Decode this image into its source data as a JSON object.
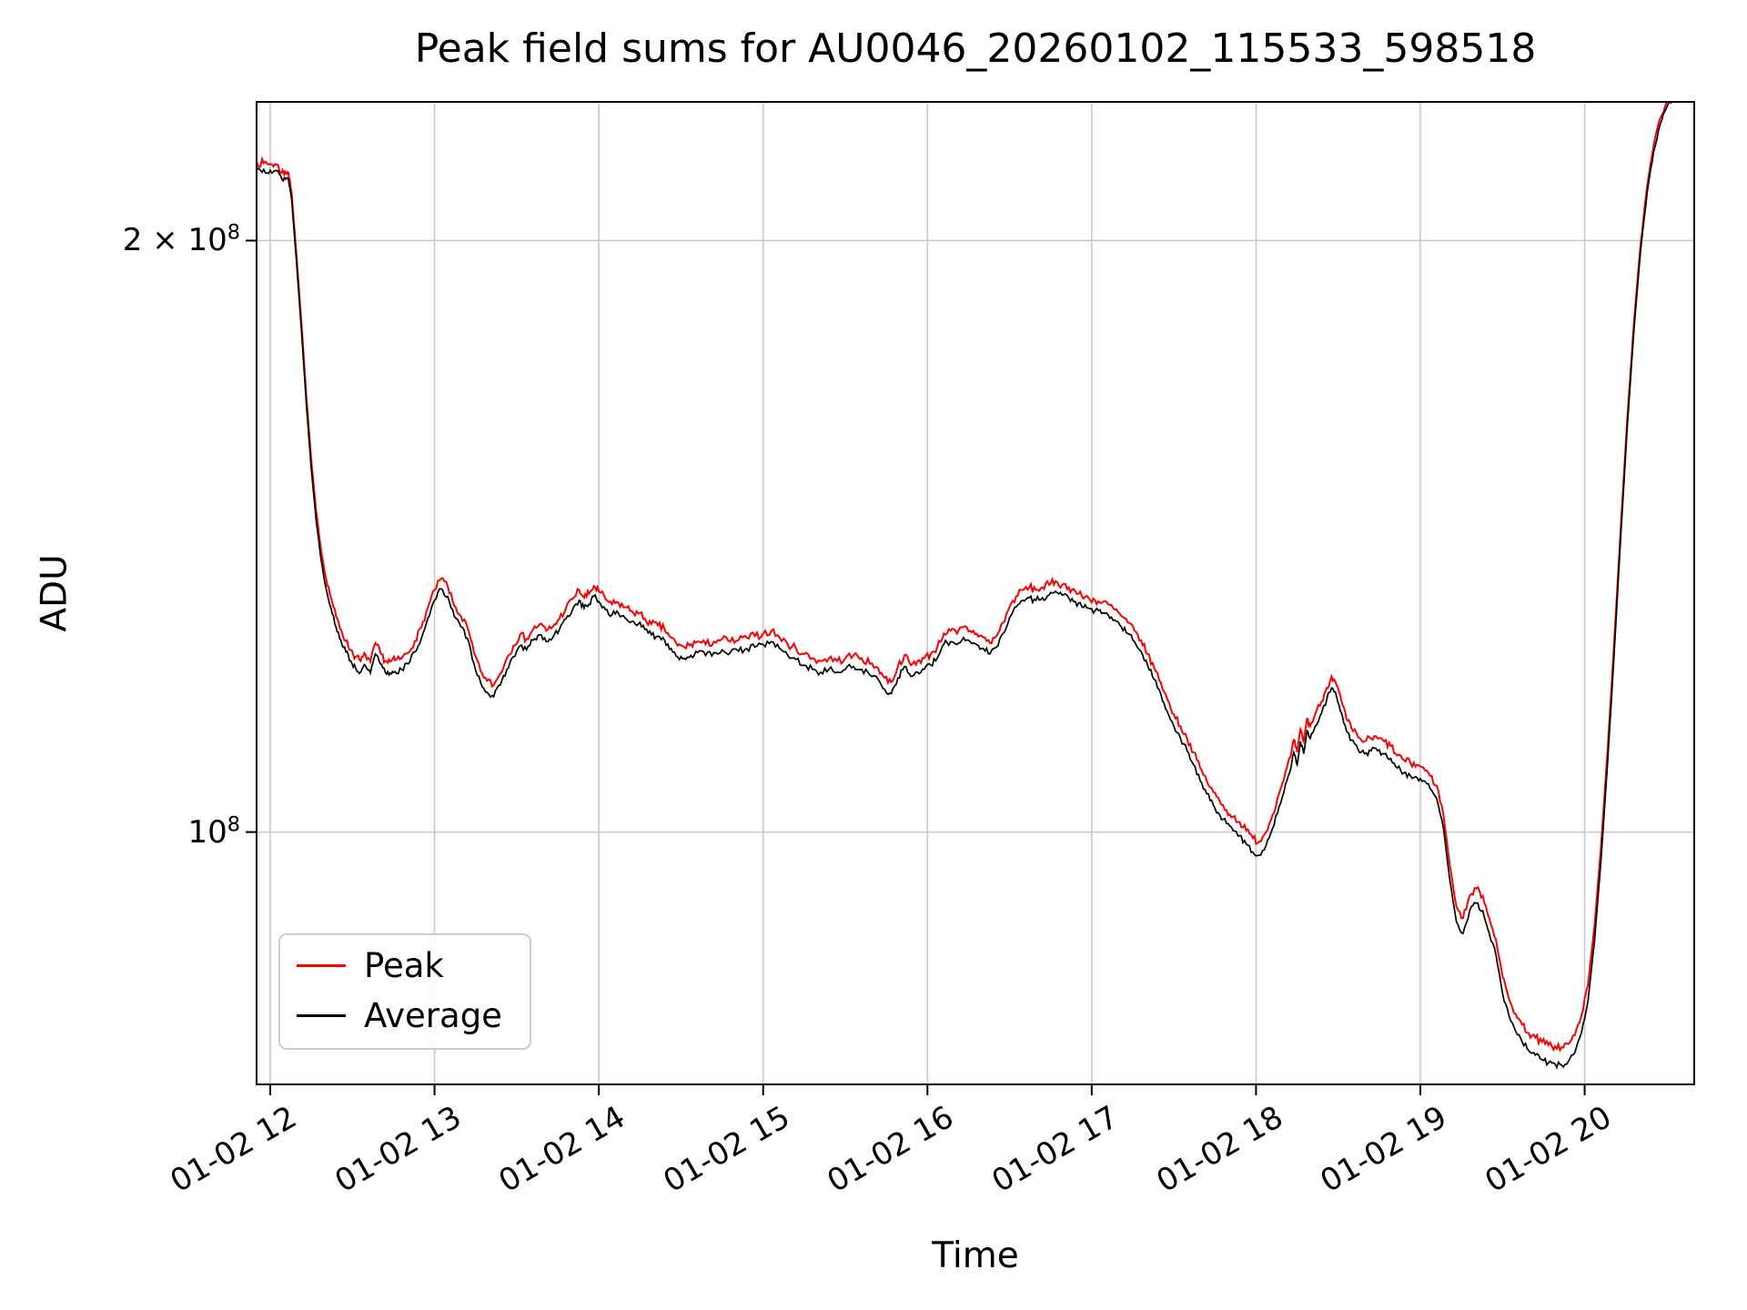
{
  "chart_data": {
    "type": "line",
    "title": "Peak field sums for AU0046_20260102_115533_598518",
    "xlabel": "Time",
    "ylabel": "ADU",
    "y_scale": "log",
    "grid": true,
    "grid_color": "#c9c9c9",
    "ylim": [
      74400000,
      235300000
    ],
    "xlim_hours": [
      11.917,
      20.667
    ],
    "y_unit_scale": 100000000,
    "x_ticks": [
      {
        "hour": 12,
        "label": "01-02 12"
      },
      {
        "hour": 13,
        "label": "01-02 13"
      },
      {
        "hour": 14,
        "label": "01-02 14"
      },
      {
        "hour": 15,
        "label": "01-02 15"
      },
      {
        "hour": 16,
        "label": "01-02 16"
      },
      {
        "hour": 17,
        "label": "01-02 17"
      },
      {
        "hour": 18,
        "label": "01-02 18"
      },
      {
        "hour": 19,
        "label": "01-02 19"
      },
      {
        "hour": 20,
        "label": "01-02 20"
      }
    ],
    "y_ticks": [
      {
        "value": 200000000,
        "base": "2 × 10",
        "exp": "8"
      },
      {
        "value": 100000000,
        "base": "10",
        "exp": "8"
      }
    ],
    "legend": {
      "location": "lower left",
      "entries": [
        {
          "name": "Peak",
          "color": "#ff0000"
        },
        {
          "name": "Average",
          "color": "#000000"
        }
      ]
    },
    "series_order": [
      "Peak",
      "Average"
    ],
    "noise_band_log10": {
      "Peak": 0.0022,
      "Average": 0.0018
    },
    "points_format": [
      "hour",
      "Peak_1e8",
      "Average_1e8"
    ],
    "points": [
      [
        11.92,
        2.191,
        2.175
      ],
      [
        11.96,
        2.19,
        2.174
      ],
      [
        12.0,
        2.188,
        2.172
      ],
      [
        12.04,
        2.186,
        2.17
      ],
      [
        12.07,
        2.166,
        2.15
      ],
      [
        12.09,
        2.168,
        2.152
      ],
      [
        12.11,
        2.166,
        2.15
      ],
      [
        12.13,
        2.116,
        2.1
      ],
      [
        12.16,
        1.966,
        1.95
      ],
      [
        12.19,
        1.816,
        1.8
      ],
      [
        12.22,
        1.666,
        1.65
      ],
      [
        12.25,
        1.546,
        1.53
      ],
      [
        12.28,
        1.456,
        1.44
      ],
      [
        12.31,
        1.391,
        1.375
      ],
      [
        12.34,
        1.346,
        1.33
      ],
      [
        12.37,
        1.316,
        1.3
      ],
      [
        12.4,
        1.288,
        1.272
      ],
      [
        12.43,
        1.268,
        1.252
      ],
      [
        12.46,
        1.251,
        1.235
      ],
      [
        12.49,
        1.238,
        1.222
      ],
      [
        12.52,
        1.228,
        1.212
      ],
      [
        12.55,
        1.222,
        1.206
      ],
      [
        12.58,
        1.231,
        1.215
      ],
      [
        12.61,
        1.221,
        1.205
      ],
      [
        12.64,
        1.248,
        1.232
      ],
      [
        12.67,
        1.234,
        1.218
      ],
      [
        12.7,
        1.222,
        1.206
      ],
      [
        12.73,
        1.221,
        1.205
      ],
      [
        12.76,
        1.223,
        1.207
      ],
      [
        12.8,
        1.226,
        1.21
      ],
      [
        12.84,
        1.234,
        1.218
      ],
      [
        12.88,
        1.251,
        1.235
      ],
      [
        12.92,
        1.271,
        1.255
      ],
      [
        12.96,
        1.301,
        1.285
      ],
      [
        13.0,
        1.328,
        1.312
      ],
      [
        13.04,
        1.346,
        1.33
      ],
      [
        13.08,
        1.334,
        1.318
      ],
      [
        13.12,
        1.304,
        1.288
      ],
      [
        13.16,
        1.288,
        1.272
      ],
      [
        13.2,
        1.271,
        1.255
      ],
      [
        13.24,
        1.234,
        1.218
      ],
      [
        13.28,
        1.208,
        1.192
      ],
      [
        13.32,
        1.194,
        1.178
      ],
      [
        13.36,
        1.188,
        1.172
      ],
      [
        13.4,
        1.204,
        1.188
      ],
      [
        13.44,
        1.226,
        1.21
      ],
      [
        13.48,
        1.244,
        1.228
      ],
      [
        13.52,
        1.26,
        1.244
      ],
      [
        13.56,
        1.254,
        1.238
      ],
      [
        13.6,
        1.268,
        1.252
      ],
      [
        13.64,
        1.276,
        1.26
      ],
      [
        13.68,
        1.266,
        1.25
      ],
      [
        13.72,
        1.272,
        1.256
      ],
      [
        13.76,
        1.284,
        1.268
      ],
      [
        13.8,
        1.3,
        1.284
      ],
      [
        13.84,
        1.314,
        1.298
      ],
      [
        13.88,
        1.328,
        1.312
      ],
      [
        13.91,
        1.316,
        1.3
      ],
      [
        13.94,
        1.322,
        1.306
      ],
      [
        13.97,
        1.334,
        1.318
      ],
      [
        14.0,
        1.326,
        1.31
      ],
      [
        14.04,
        1.314,
        1.298
      ],
      [
        14.08,
        1.306,
        1.29
      ],
      [
        14.12,
        1.308,
        1.292
      ],
      [
        14.16,
        1.301,
        1.285
      ],
      [
        14.2,
        1.296,
        1.28
      ],
      [
        14.24,
        1.292,
        1.276
      ],
      [
        14.28,
        1.284,
        1.268
      ],
      [
        14.32,
        1.276,
        1.26
      ],
      [
        14.36,
        1.274,
        1.258
      ],
      [
        14.4,
        1.268,
        1.252
      ],
      [
        14.44,
        1.256,
        1.24
      ],
      [
        14.48,
        1.244,
        1.228
      ],
      [
        14.52,
        1.242,
        1.226
      ],
      [
        14.56,
        1.246,
        1.23
      ],
      [
        14.6,
        1.25,
        1.234
      ],
      [
        14.65,
        1.246,
        1.23
      ],
      [
        14.7,
        1.25,
        1.234
      ],
      [
        14.75,
        1.254,
        1.238
      ],
      [
        14.8,
        1.25,
        1.234
      ],
      [
        14.85,
        1.252,
        1.236
      ],
      [
        14.9,
        1.256,
        1.24
      ],
      [
        14.95,
        1.258,
        1.242
      ],
      [
        15.0,
        1.262,
        1.246
      ],
      [
        15.05,
        1.266,
        1.25
      ],
      [
        15.1,
        1.256,
        1.24
      ],
      [
        15.15,
        1.246,
        1.23
      ],
      [
        15.2,
        1.24,
        1.224
      ],
      [
        15.25,
        1.232,
        1.216
      ],
      [
        15.3,
        1.226,
        1.21
      ],
      [
        15.35,
        1.222,
        1.206
      ],
      [
        15.4,
        1.226,
        1.21
      ],
      [
        15.45,
        1.222,
        1.206
      ],
      [
        15.5,
        1.226,
        1.21
      ],
      [
        15.55,
        1.23,
        1.214
      ],
      [
        15.6,
        1.226,
        1.21
      ],
      [
        15.65,
        1.218,
        1.202
      ],
      [
        15.7,
        1.212,
        1.196
      ],
      [
        15.74,
        1.198,
        1.182
      ],
      [
        15.78,
        1.192,
        1.176
      ],
      [
        15.82,
        1.214,
        1.198
      ],
      [
        15.86,
        1.23,
        1.214
      ],
      [
        15.9,
        1.216,
        1.2
      ],
      [
        15.94,
        1.222,
        1.206
      ],
      [
        15.98,
        1.226,
        1.21
      ],
      [
        16.02,
        1.232,
        1.216
      ],
      [
        16.06,
        1.242,
        1.226
      ],
      [
        16.1,
        1.262,
        1.246
      ],
      [
        16.14,
        1.266,
        1.25
      ],
      [
        16.18,
        1.262,
        1.246
      ],
      [
        16.22,
        1.272,
        1.256
      ],
      [
        16.26,
        1.266,
        1.25
      ],
      [
        16.3,
        1.262,
        1.246
      ],
      [
        16.34,
        1.256,
        1.24
      ],
      [
        16.38,
        1.248,
        1.232
      ],
      [
        16.42,
        1.258,
        1.242
      ],
      [
        16.46,
        1.278,
        1.262
      ],
      [
        16.5,
        1.302,
        1.286
      ],
      [
        16.54,
        1.318,
        1.302
      ],
      [
        16.58,
        1.328,
        1.312
      ],
      [
        16.62,
        1.332,
        1.316
      ],
      [
        16.66,
        1.328,
        1.312
      ],
      [
        16.7,
        1.332,
        1.316
      ],
      [
        16.74,
        1.336,
        1.32
      ],
      [
        16.78,
        1.342,
        1.326
      ],
      [
        16.82,
        1.336,
        1.32
      ],
      [
        16.86,
        1.332,
        1.316
      ],
      [
        16.9,
        1.326,
        1.31
      ],
      [
        16.94,
        1.318,
        1.302
      ],
      [
        16.98,
        1.316,
        1.3
      ],
      [
        17.02,
        1.312,
        1.296
      ],
      [
        17.06,
        1.308,
        1.292
      ],
      [
        17.1,
        1.306,
        1.29
      ],
      [
        17.14,
        1.298,
        1.282
      ],
      [
        17.18,
        1.288,
        1.272
      ],
      [
        17.22,
        1.278,
        1.262
      ],
      [
        17.26,
        1.266,
        1.25
      ],
      [
        17.3,
        1.252,
        1.236
      ],
      [
        17.34,
        1.232,
        1.216
      ],
      [
        17.38,
        1.212,
        1.196
      ],
      [
        17.42,
        1.192,
        1.176
      ],
      [
        17.46,
        1.168,
        1.152
      ],
      [
        17.5,
        1.148,
        1.132
      ],
      [
        17.54,
        1.132,
        1.116
      ],
      [
        17.58,
        1.116,
        1.1
      ],
      [
        17.62,
        1.098,
        1.082
      ],
      [
        17.66,
        1.078,
        1.062
      ],
      [
        17.7,
        1.062,
        1.046
      ],
      [
        17.74,
        1.048,
        1.032
      ],
      [
        17.78,
        1.036,
        1.02
      ],
      [
        17.82,
        1.026,
        1.01
      ],
      [
        17.86,
        1.018,
        1.002
      ],
      [
        17.9,
        1.012,
        0.996
      ],
      [
        17.94,
        1.002,
        0.986
      ],
      [
        17.98,
        0.993,
        0.977
      ],
      [
        18.02,
        0.989,
        0.973
      ],
      [
        18.06,
        1.0,
        0.984
      ],
      [
        18.1,
        1.02,
        1.004
      ],
      [
        18.14,
        1.046,
        1.03
      ],
      [
        18.18,
        1.074,
        1.058
      ],
      [
        18.21,
        1.092,
        1.076
      ],
      [
        18.23,
        1.114,
        1.098
      ],
      [
        18.25,
        1.098,
        1.082
      ],
      [
        18.27,
        1.128,
        1.112
      ],
      [
        18.29,
        1.112,
        1.096
      ],
      [
        18.31,
        1.142,
        1.126
      ],
      [
        18.33,
        1.132,
        1.116
      ],
      [
        18.36,
        1.148,
        1.132
      ],
      [
        18.4,
        1.166,
        1.15
      ],
      [
        18.43,
        1.184,
        1.168
      ],
      [
        18.46,
        1.2,
        1.184
      ],
      [
        18.49,
        1.188,
        1.172
      ],
      [
        18.52,
        1.166,
        1.15
      ],
      [
        18.55,
        1.142,
        1.126
      ],
      [
        18.58,
        1.13,
        1.114
      ],
      [
        18.62,
        1.118,
        1.102
      ],
      [
        18.66,
        1.112,
        1.096
      ],
      [
        18.7,
        1.116,
        1.1
      ],
      [
        18.74,
        1.116,
        1.1
      ],
      [
        18.78,
        1.112,
        1.096
      ],
      [
        18.82,
        1.106,
        1.09
      ],
      [
        18.86,
        1.094,
        1.078
      ],
      [
        18.9,
        1.088,
        1.072
      ],
      [
        18.94,
        1.084,
        1.068
      ],
      [
        18.98,
        1.082,
        1.066
      ],
      [
        19.02,
        1.078,
        1.062
      ],
      [
        19.06,
        1.068,
        1.052
      ],
      [
        19.1,
        1.056,
        1.04
      ],
      [
        19.14,
        1.021,
        1.005
      ],
      [
        19.18,
        0.961,
        0.945
      ],
      [
        19.22,
        0.916,
        0.9
      ],
      [
        19.26,
        0.904,
        0.888
      ],
      [
        19.3,
        0.928,
        0.912
      ],
      [
        19.34,
        0.936,
        0.92
      ],
      [
        19.38,
        0.928,
        0.912
      ],
      [
        19.42,
        0.904,
        0.888
      ],
      [
        19.46,
        0.882,
        0.866
      ],
      [
        19.5,
        0.844,
        0.828
      ],
      [
        19.54,
        0.822,
        0.806
      ],
      [
        19.58,
        0.808,
        0.792
      ],
      [
        19.62,
        0.798,
        0.782
      ],
      [
        19.66,
        0.79,
        0.774
      ],
      [
        19.7,
        0.786,
        0.77
      ],
      [
        19.74,
        0.782,
        0.766
      ],
      [
        19.78,
        0.779,
        0.763
      ],
      [
        19.82,
        0.778,
        0.762
      ],
      [
        19.86,
        0.777,
        0.761
      ],
      [
        19.9,
        0.78,
        0.764
      ],
      [
        19.94,
        0.788,
        0.772
      ],
      [
        19.98,
        0.806,
        0.79
      ],
      [
        20.02,
        0.836,
        0.82
      ],
      [
        20.06,
        0.896,
        0.88
      ],
      [
        20.1,
        0.984,
        0.968
      ],
      [
        20.14,
        1.101,
        1.085
      ],
      [
        20.18,
        1.251,
        1.235
      ],
      [
        20.22,
        1.431,
        1.415
      ],
      [
        20.26,
        1.626,
        1.61
      ],
      [
        20.3,
        1.816,
        1.8
      ],
      [
        20.34,
        1.991,
        1.975
      ],
      [
        20.38,
        2.131,
        2.115
      ],
      [
        20.42,
        2.236,
        2.22
      ],
      [
        20.46,
        2.308,
        2.292
      ],
      [
        20.5,
        2.354,
        2.338
      ],
      [
        20.55,
        2.384,
        2.368
      ],
      [
        20.6,
        2.401,
        2.385
      ],
      [
        20.67,
        2.416,
        2.4
      ]
    ]
  }
}
